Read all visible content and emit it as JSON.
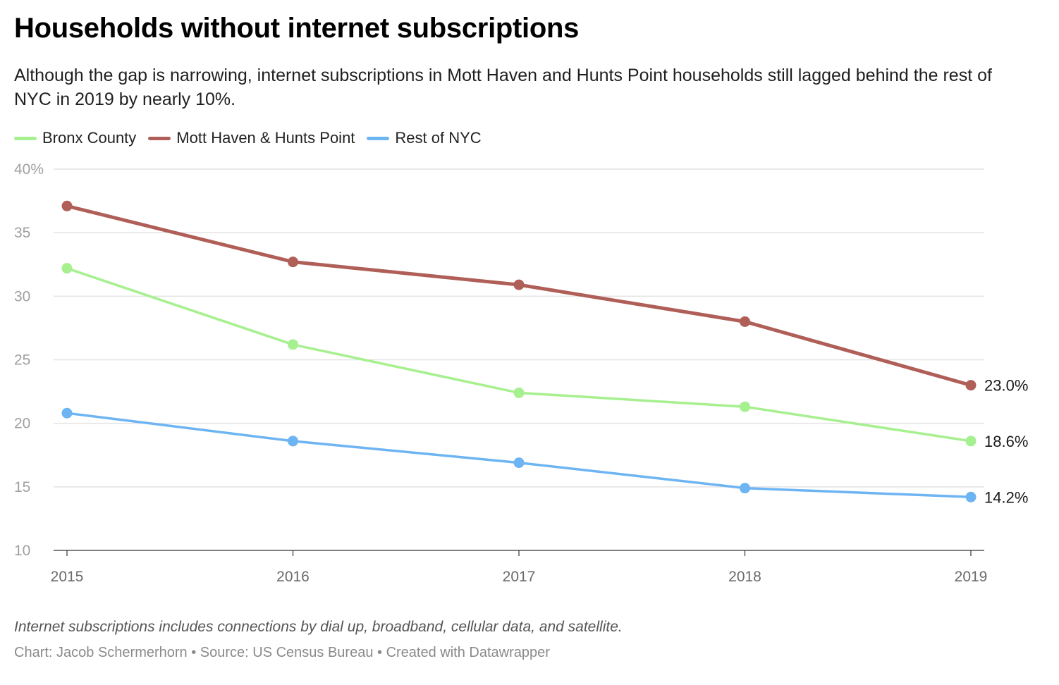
{
  "title": "Households without internet subscriptions",
  "subtitle": "Although the gap is narrowing, internet subscriptions in Mott Haven and Hunts Point households still lagged behind the rest of NYC in 2019 by nearly 10%.",
  "colors": {
    "bronx": "#a6f08f",
    "mott": "#b05f58",
    "rest": "#6db4f3",
    "grid": "#e3e3e3",
    "tick": "#a0a0a0",
    "axis": "#333333"
  },
  "chart_data": {
    "type": "line",
    "x": [
      2015,
      2016,
      2017,
      2018,
      2019
    ],
    "x_tick_labels": [
      "2015",
      "2016",
      "2017",
      "2018",
      "2019"
    ],
    "y_tick_values": [
      40,
      35,
      30,
      25,
      20,
      15,
      10
    ],
    "y_tick_labels": [
      "40%",
      "35",
      "30",
      "25",
      "20",
      "15",
      "10"
    ],
    "ylim": [
      10,
      40
    ],
    "grid": true,
    "legend_position": "top-left",
    "series": [
      {
        "key": "bronx",
        "name": "Bronx County",
        "values": [
          32.2,
          26.2,
          22.4,
          21.3,
          18.6
        ],
        "end_label": "18.6%"
      },
      {
        "key": "mott",
        "name": "Mott Haven & Hunts Point",
        "values": [
          37.1,
          32.7,
          30.9,
          28.0,
          23.0
        ],
        "end_label": "23.0%"
      },
      {
        "key": "rest",
        "name": "Rest of NYC",
        "values": [
          20.8,
          18.6,
          16.9,
          14.9,
          14.2
        ],
        "end_label": "14.2%"
      }
    ]
  },
  "note": "Internet subscriptions includes connections by dial up, broadband, cellular data, and satellite.",
  "credit": "Chart: Jacob Schermerhorn • Source: US Census Bureau • Created with Datawrapper"
}
